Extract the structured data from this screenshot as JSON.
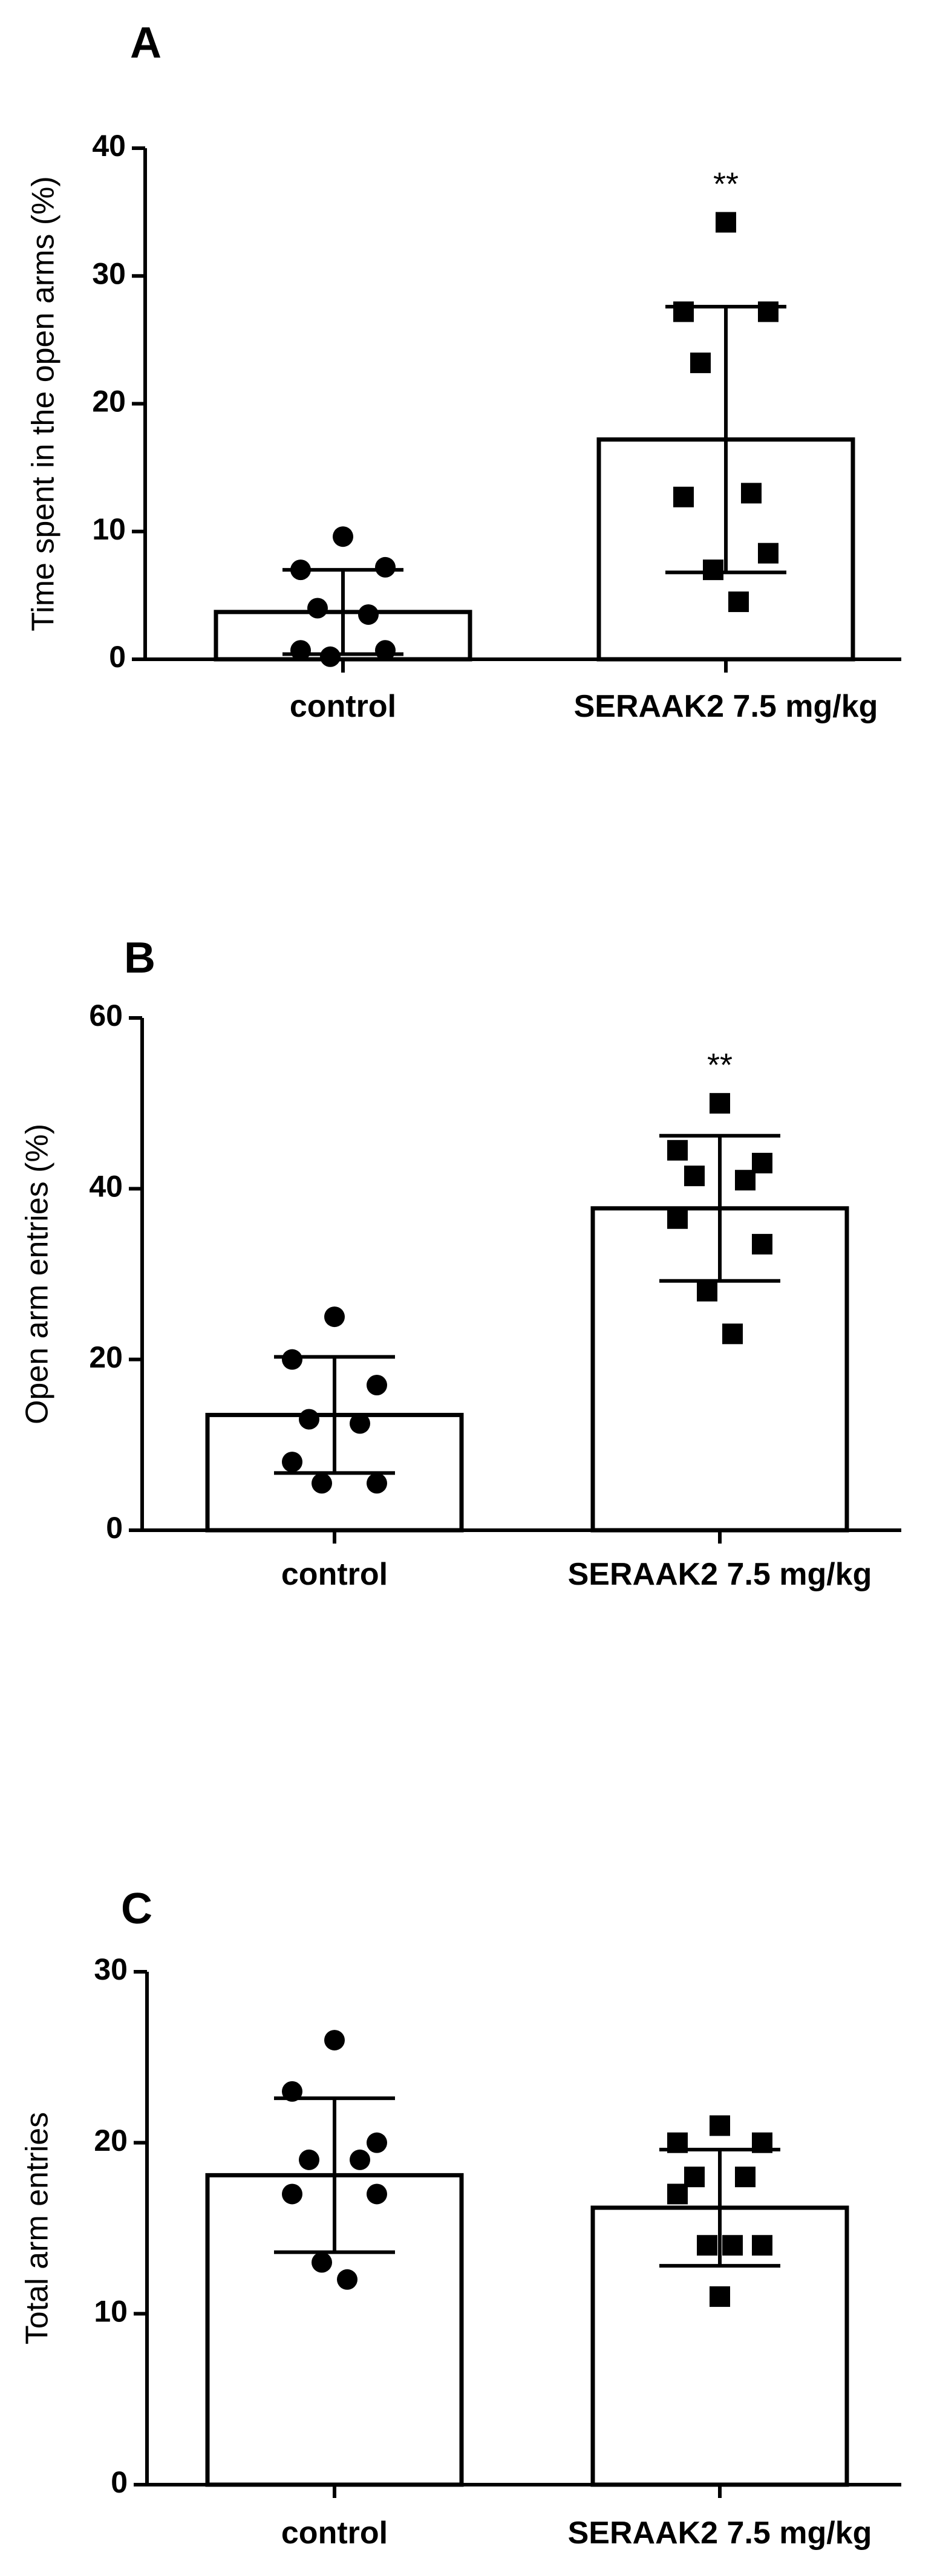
{
  "chart_data": [
    {
      "type": "bar",
      "panel": "A",
      "ylabel": "Time spent in the open arms (%)",
      "ylim": [
        0,
        40
      ],
      "yticks": [
        "0",
        "10",
        "20",
        "30",
        "40"
      ],
      "categories": [
        "control",
        "SERAAK2 7.5 mg/kg"
      ],
      "series": [
        {
          "values": [
            3.7,
            17.2
          ],
          "sd": [
            3.3,
            10.4
          ],
          "points": [
            [
              9.6,
              7.0,
              7.2,
              4.0,
              3.5,
              0.7,
              0.7,
              0.2
            ],
            [
              34.2,
              27.2,
              27.2,
              23.2,
              13.0,
              12.7,
              8.3,
              7.0,
              4.5
            ]
          ]
        }
      ],
      "annotations": [
        "",
        "**"
      ],
      "grid": false
    },
    {
      "type": "bar",
      "panel": "B",
      "ylabel": "Open arm entries (%)",
      "ylim": [
        0,
        60
      ],
      "yticks": [
        "0",
        "20",
        "40",
        "60"
      ],
      "categories": [
        "control",
        "SERAAK2 7.5 mg/kg"
      ],
      "series": [
        {
          "values": [
            13.5,
            37.7
          ],
          "sd": [
            6.8,
            8.5
          ],
          "points": [
            [
              25.0,
              20.0,
              17.0,
              13.0,
              12.5,
              8.0,
              5.5,
              5.5
            ],
            [
              50.0,
              44.5,
              43.0,
              41.5,
              41.0,
              36.5,
              33.5,
              28.0,
              23.0
            ]
          ]
        }
      ],
      "annotations": [
        "",
        "**"
      ],
      "grid": false
    },
    {
      "type": "bar",
      "panel": "C",
      "ylabel": "Total arm entries",
      "ylim": [
        0,
        30
      ],
      "yticks": [
        "0",
        "10",
        "20",
        "30"
      ],
      "categories": [
        "control",
        "SERAAK2  7.5 mg/kg"
      ],
      "series": [
        {
          "values": [
            18.1,
            16.2
          ],
          "sd": [
            4.5,
            3.4
          ],
          "points": [
            [
              26.0,
              23.0,
              20.0,
              19.0,
              19.0,
              17.0,
              17.0,
              13.0,
              12.0
            ],
            [
              21.0,
              20.0,
              20.0,
              18.0,
              18.0,
              17.0,
              14.0,
              14.0,
              14.0,
              11.0
            ]
          ]
        }
      ],
      "annotations": [
        "",
        ""
      ],
      "grid": false
    }
  ],
  "colors": {
    "bar_fill": "#ffffff",
    "stroke": "#000000",
    "marker": "#000000"
  }
}
